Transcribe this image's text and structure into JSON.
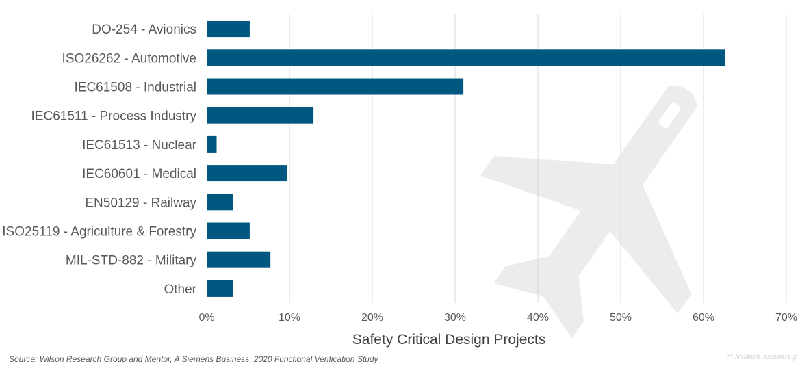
{
  "chart_data": {
    "type": "bar",
    "orientation": "horizontal",
    "categories": [
      "DO-254 - Avionics",
      "ISO26262 - Automotive",
      "IEC61508 - Industrial",
      "IEC61511 - Process Industry",
      "IEC61513 - Nuclear",
      "IEC60601 - Medical",
      "EN50129 - Railway",
      "ISO25119 - Agriculture & Forestry",
      "MIL-STD-882 - Military",
      "Other"
    ],
    "values": [
      5.2,
      62.6,
      31.0,
      12.9,
      1.2,
      9.7,
      3.2,
      5.2,
      7.7,
      3.2
    ],
    "xlabel": "Safety Critical Design Projects",
    "ylabel": "",
    "xlim": [
      0,
      70
    ],
    "xticks": [
      0,
      10,
      20,
      30,
      40,
      50,
      60,
      70
    ],
    "tick_format": "percent",
    "grid": "vertical",
    "bar_color": "#00577f",
    "grid_color": "#d9d9d9",
    "watermark_icon": "airplane-icon"
  },
  "footer": {
    "source": "Source:  Wilson Research Group and Mentor, A Siemens Business, 2020 Functional Verification Study",
    "note": "** Multiple answers p"
  }
}
